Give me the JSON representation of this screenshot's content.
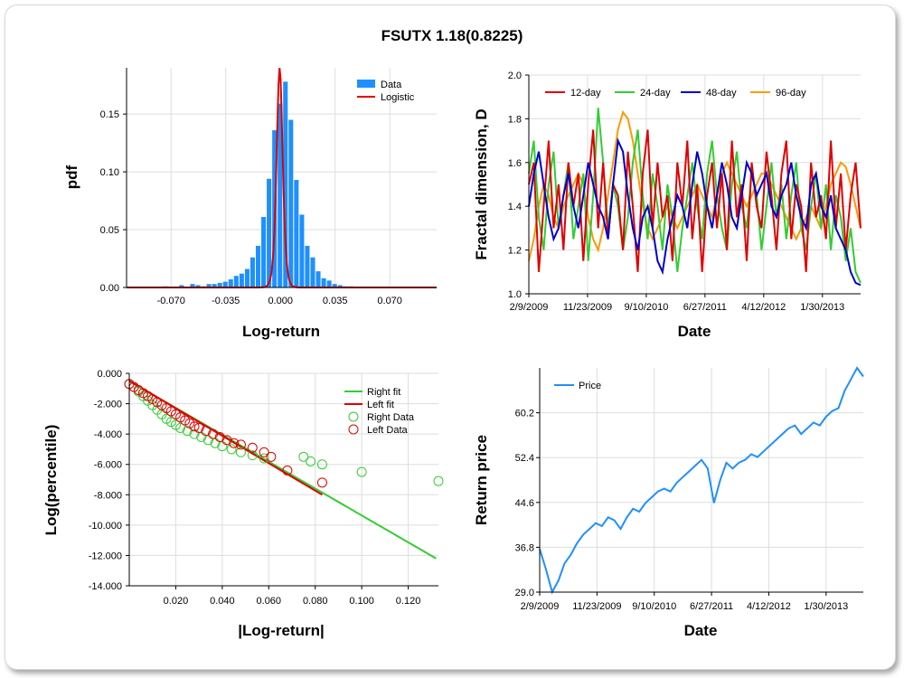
{
  "title": "FSUTX 1.18(0.8225)",
  "colors": {
    "data_blue": "#1E90FF",
    "logistic_red": "#E00000",
    "d12": "#E00000",
    "d24": "#33CC33",
    "d48": "#0000CC",
    "d96": "#FF9900",
    "right_green": "#33CC33",
    "left_red": "#E00000",
    "grid": "#DDDDDD"
  },
  "chart_data": [
    {
      "id": "pdf",
      "type": "bar",
      "title": "",
      "xlabel": "Log-return",
      "ylabel": "pdf",
      "xlim": [
        -0.0985,
        0.1
      ],
      "ylim": [
        0,
        0.19
      ],
      "grid": true,
      "legend_position": "top-right",
      "xticks": [
        -0.07,
        -0.035,
        0.0,
        0.035,
        0.07
      ],
      "xtick_labels": [
        "-0.070",
        "-0.035",
        "0.000",
        "0.035",
        "0.070"
      ],
      "yticks": [
        0.0,
        0.05,
        0.1,
        0.15
      ],
      "ytick_labels": [
        "0.00",
        "0.05",
        "0.10",
        "0.15"
      ],
      "legend": [
        "Data",
        "Logistic"
      ],
      "bin_width": 0.0035,
      "bin_centers": [
        -0.0735,
        -0.07,
        -0.0665,
        -0.063,
        -0.0595,
        -0.056,
        -0.0525,
        -0.049,
        -0.0455,
        -0.042,
        -0.0385,
        -0.035,
        -0.0315,
        -0.028,
        -0.0245,
        -0.021,
        -0.0175,
        -0.014,
        -0.0105,
        -0.007,
        -0.0035,
        0.0,
        0.0035,
        0.007,
        0.0105,
        0.014,
        0.0175,
        0.021,
        0.0245,
        0.028,
        0.0315,
        0.035,
        0.0385,
        0.042,
        0.0455
      ],
      "values": [
        0.001,
        0.0,
        0.0,
        0.002,
        0.0,
        0.003,
        0.002,
        0.001,
        0.003,
        0.003,
        0.004,
        0.005,
        0.007,
        0.01,
        0.012,
        0.016,
        0.026,
        0.036,
        0.061,
        0.094,
        0.136,
        0.159,
        0.178,
        0.145,
        0.093,
        0.063,
        0.036,
        0.026,
        0.014,
        0.008,
        0.006,
        0.003,
        0.002,
        0.001,
        0.001
      ],
      "logistic": {
        "name": "Logistic",
        "mu": -0.0005,
        "s": 0.0013,
        "peak": 0.19
      }
    },
    {
      "id": "fractal",
      "type": "line",
      "title": "",
      "xlabel": "Date",
      "ylabel": "Fractal dimension, D",
      "ylim": [
        1.0,
        2.0
      ],
      "yticks": [
        1.0,
        1.2,
        1.4,
        1.6,
        1.8,
        2.0
      ],
      "ytick_labels": [
        "1.0",
        "1.2",
        "1.4",
        "1.6",
        "1.8",
        "2.0"
      ],
      "xtick_labels": [
        "2/9/2009",
        "11/23/2009",
        "9/10/2010",
        "6/27/2011",
        "4/12/2012",
        "1/30/2013"
      ],
      "grid": true,
      "legend_position": "top",
      "series": [
        {
          "name": "12-day",
          "values": [
            1.5,
            1.6,
            1.1,
            1.4,
            1.7,
            1.3,
            1.5,
            1.2,
            1.6,
            1.4,
            1.55,
            1.15,
            1.5,
            1.75,
            1.3,
            1.6,
            1.25,
            1.5,
            1.45,
            1.2,
            1.65,
            1.4,
            1.1,
            1.55,
            1.75,
            1.3,
            1.6,
            1.35,
            1.45,
            1.15,
            1.6,
            1.4,
            1.7,
            1.25,
            1.5,
            1.1,
            1.45,
            1.6,
            1.3,
            1.55,
            1.2,
            1.7,
            1.35,
            1.5,
            1.15,
            1.6,
            1.4,
            1.3,
            1.65,
            1.45,
            1.2,
            1.55,
            1.7,
            1.25,
            1.5,
            1.4,
            1.1,
            1.6,
            1.35,
            1.45,
            1.25,
            1.7,
            1.3,
            1.55,
            1.2,
            1.45,
            1.6,
            1.3
          ]
        },
        {
          "name": "24-day",
          "values": [
            1.55,
            1.7,
            1.35,
            1.2,
            1.5,
            1.65,
            1.3,
            1.45,
            1.6,
            1.25,
            1.4,
            1.55,
            1.15,
            1.45,
            1.85,
            1.6,
            1.3,
            1.5,
            1.4,
            1.2,
            1.35,
            1.6,
            1.75,
            1.45,
            1.25,
            1.55,
            1.4,
            1.2,
            1.5,
            1.35,
            1.1,
            1.3,
            1.45,
            1.6,
            1.4,
            1.25,
            1.55,
            1.7,
            1.45,
            1.3,
            1.2,
            1.5,
            1.65,
            1.4,
            1.3,
            1.55,
            1.45,
            1.2,
            1.4,
            1.6,
            1.35,
            1.5,
            1.25,
            1.45,
            1.6,
            1.3,
            1.2,
            1.4,
            1.55,
            1.3,
            1.5,
            1.2,
            1.45,
            1.35,
            1.15,
            1.3,
            1.1,
            1.05
          ]
        },
        {
          "name": "48-day",
          "values": [
            1.4,
            1.55,
            1.65,
            1.5,
            1.35,
            1.25,
            1.3,
            1.45,
            1.55,
            1.4,
            1.3,
            1.45,
            1.6,
            1.5,
            1.4,
            1.35,
            1.25,
            1.5,
            1.7,
            1.65,
            1.45,
            1.3,
            1.2,
            1.35,
            1.4,
            1.3,
            1.15,
            1.1,
            1.25,
            1.35,
            1.45,
            1.4,
            1.3,
            1.5,
            1.65,
            1.55,
            1.4,
            1.3,
            1.45,
            1.6,
            1.5,
            1.35,
            1.3,
            1.45,
            1.6,
            1.55,
            1.45,
            1.5,
            1.55,
            1.4,
            1.35,
            1.45,
            1.5,
            1.6,
            1.45,
            1.35,
            1.3,
            1.5,
            1.55,
            1.4,
            1.35,
            1.45,
            1.3,
            1.25,
            1.2,
            1.1,
            1.05,
            1.04
          ]
        },
        {
          "name": "96-day",
          "values": [
            1.15,
            1.25,
            1.4,
            1.5,
            1.45,
            1.35,
            1.3,
            1.4,
            1.45,
            1.5,
            1.55,
            1.5,
            1.35,
            1.25,
            1.2,
            1.3,
            1.45,
            1.6,
            1.75,
            1.83,
            1.8,
            1.7,
            1.55,
            1.4,
            1.3,
            1.25,
            1.3,
            1.35,
            1.4,
            1.35,
            1.3,
            1.35,
            1.4,
            1.45,
            1.5,
            1.45,
            1.4,
            1.35,
            1.45,
            1.55,
            1.6,
            1.55,
            1.5,
            1.45,
            1.4,
            1.45,
            1.5,
            1.55,
            1.55,
            1.5,
            1.45,
            1.4,
            1.35,
            1.3,
            1.25,
            1.3,
            1.35,
            1.4,
            1.35,
            1.3,
            1.4,
            1.5,
            1.55,
            1.6,
            1.58,
            1.5,
            1.4,
            1.3
          ]
        }
      ]
    },
    {
      "id": "tail",
      "type": "scatter",
      "title": "",
      "xlabel": "|Log-return|",
      "ylabel": "Log(percentile)",
      "xlim": [
        0.0,
        0.133
      ],
      "ylim": [
        -14.0,
        0.0
      ],
      "xticks": [
        0.02,
        0.04,
        0.06,
        0.08,
        0.1,
        0.12
      ],
      "xtick_labels": [
        "0.020",
        "0.040",
        "0.060",
        "0.080",
        "0.100",
        "0.120"
      ],
      "yticks": [
        0.0,
        -2.0,
        -4.0,
        -6.0,
        -8.0,
        -10.0,
        -12.0,
        -14.0
      ],
      "ytick_labels": [
        "0.000",
        "-2.000",
        "-4.000",
        "-6.000",
        "-8.000",
        "-10.000",
        "-12.000",
        "-14.000"
      ],
      "grid": true,
      "legend_position": "top-right",
      "legend": [
        "Right fit",
        "Left fit",
        "Right Data",
        "Left Data"
      ],
      "right_fit": {
        "name": "Right fit",
        "x": [
          0.0,
          0.132
        ],
        "y": [
          -0.5,
          -12.2
        ]
      },
      "left_fit": {
        "name": "Left fit",
        "x": [
          0.0,
          0.083
        ],
        "y": [
          -0.5,
          -8.0
        ]
      },
      "right_data": {
        "name": "Right Data",
        "x": [
          0.0,
          0.002,
          0.004,
          0.006,
          0.008,
          0.01,
          0.012,
          0.014,
          0.016,
          0.018,
          0.02,
          0.022,
          0.025,
          0.028,
          0.031,
          0.034,
          0.037,
          0.04,
          0.044,
          0.048,
          0.053,
          0.058,
          0.075,
          0.078,
          0.083,
          0.1,
          0.133
        ],
        "y": [
          -0.7,
          -0.9,
          -1.2,
          -1.5,
          -1.8,
          -2.1,
          -2.4,
          -2.7,
          -3.0,
          -3.2,
          -3.4,
          -3.6,
          -3.8,
          -4.0,
          -4.2,
          -4.4,
          -4.6,
          -4.8,
          -5.0,
          -5.2,
          -5.4,
          -5.6,
          -5.5,
          -5.8,
          -6.0,
          -6.5,
          -7.1
        ]
      },
      "left_data": {
        "name": "Left Data",
        "x": [
          0.0,
          0.002,
          0.004,
          0.006,
          0.008,
          0.01,
          0.012,
          0.014,
          0.016,
          0.018,
          0.02,
          0.022,
          0.024,
          0.026,
          0.028,
          0.03,
          0.033,
          0.036,
          0.039,
          0.042,
          0.045,
          0.048,
          0.053,
          0.058,
          0.061,
          0.068,
          0.083
        ],
        "y": [
          -0.7,
          -0.9,
          -1.1,
          -1.3,
          -1.5,
          -1.7,
          -1.9,
          -2.1,
          -2.3,
          -2.5,
          -2.7,
          -2.9,
          -3.1,
          -3.3,
          -3.5,
          -3.6,
          -3.8,
          -4.0,
          -4.2,
          -4.4,
          -4.6,
          -4.7,
          -4.9,
          -5.2,
          -5.5,
          -6.4,
          -7.2
        ]
      }
    },
    {
      "id": "price",
      "type": "line",
      "title": "",
      "xlabel": "Date",
      "ylabel": "Return price",
      "ylim": [
        29.0,
        68.0
      ],
      "yticks": [
        29.0,
        36.8,
        44.6,
        52.4,
        60.2
      ],
      "ytick_labels": [
        "29.0",
        "36.8",
        "44.6",
        "52.4",
        "60.2"
      ],
      "xtick_labels": [
        "2/9/2009",
        "11/23/2009",
        "9/10/2010",
        "6/27/2011",
        "4/12/2012",
        "1/30/2013"
      ],
      "grid": true,
      "legend_position": "top-left",
      "series": [
        {
          "name": "Price",
          "values": [
            36.5,
            33.0,
            29.0,
            31.0,
            34.0,
            35.5,
            37.5,
            39.0,
            40.0,
            41.0,
            40.5,
            42.0,
            41.5,
            40.0,
            42.0,
            43.5,
            43.0,
            44.5,
            45.5,
            46.5,
            47.0,
            46.5,
            48.0,
            49.0,
            50.0,
            51.0,
            52.0,
            50.5,
            44.5,
            48.5,
            51.5,
            50.5,
            51.5,
            52.0,
            53.0,
            52.5,
            53.5,
            54.5,
            55.5,
            56.5,
            57.5,
            58.0,
            56.5,
            57.5,
            58.5,
            58.0,
            59.5,
            60.5,
            61.0,
            64.0,
            66.0,
            68.0,
            66.5
          ]
        }
      ]
    }
  ]
}
